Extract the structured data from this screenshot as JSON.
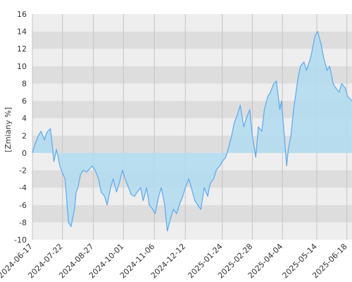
{
  "chart_data": {
    "type": "area",
    "title": "",
    "xlabel": "",
    "ylabel": "[Zmiany %]",
    "x_ticks": [
      "2024-06-17",
      "2024-07-22",
      "2024-08-27",
      "2024-10-01",
      "2024-11-06",
      "2024-12-12",
      "2025-01-24",
      "2025-02-28",
      "2025-04-04",
      "2025-05-14",
      "2025-06-18"
    ],
    "y_ticks": [
      -10,
      -8,
      -6,
      -4,
      -2,
      0,
      2,
      4,
      6,
      8,
      10,
      12,
      14,
      16
    ],
    "ylim": [
      -10,
      16
    ],
    "xlim": [
      "2024-06-17",
      "2025-06-24"
    ],
    "grid": true,
    "colors": {
      "line": "#5aa9ef",
      "fill": "#b3dcee",
      "band_light": "#eeeeee",
      "band_dark": "#dddddd",
      "vgrid": "#c4c4c4"
    },
    "series": [
      {
        "x": [
          "2024-06-17",
          "2024-06-20",
          "2024-06-24",
          "2024-06-27",
          "2024-07-01",
          "2024-07-04",
          "2024-07-08",
          "2024-07-10",
          "2024-07-12",
          "2024-07-15",
          "2024-07-17",
          "2024-07-19",
          "2024-07-22",
          "2024-07-25",
          "2024-07-29",
          "2024-08-01",
          "2024-08-05",
          "2024-08-07",
          "2024-08-09",
          "2024-08-12",
          "2024-08-15",
          "2024-08-19",
          "2024-08-22",
          "2024-08-26",
          "2024-08-29",
          "2024-09-02",
          "2024-09-05",
          "2024-09-09",
          "2024-09-12",
          "2024-09-16",
          "2024-09-19",
          "2024-09-23",
          "2024-09-26",
          "2024-09-30",
          "2024-10-03",
          "2024-10-07",
          "2024-10-10",
          "2024-10-14",
          "2024-10-17",
          "2024-10-21",
          "2024-10-24",
          "2024-10-28",
          "2024-10-31",
          "2024-11-04",
          "2024-11-07",
          "2024-11-11",
          "2024-11-14",
          "2024-11-18",
          "2024-11-21",
          "2024-11-25",
          "2024-11-28",
          "2024-12-02",
          "2024-12-05",
          "2024-12-09",
          "2024-12-12",
          "2024-12-16",
          "2024-12-19",
          "2024-12-23",
          "2024-12-30",
          "2025-01-03",
          "2025-01-07",
          "2025-01-10",
          "2025-01-14",
          "2025-01-17",
          "2025-01-21",
          "2025-01-24",
          "2025-01-28",
          "2025-01-31",
          "2025-02-04",
          "2025-02-07",
          "2025-02-11",
          "2025-02-14",
          "2025-02-18",
          "2025-02-21",
          "2025-02-25",
          "2025-02-28",
          "2025-03-04",
          "2025-03-07",
          "2025-03-11",
          "2025-03-14",
          "2025-03-18",
          "2025-03-21",
          "2025-03-25",
          "2025-03-28",
          "2025-04-01",
          "2025-04-03",
          "2025-04-07",
          "2025-04-09",
          "2025-04-11",
          "2025-04-14",
          "2025-04-17",
          "2025-04-22",
          "2025-04-25",
          "2025-04-29",
          "2025-05-02",
          "2025-05-07",
          "2025-05-12",
          "2025-05-15",
          "2025-05-19",
          "2025-05-22",
          "2025-05-26",
          "2025-05-29",
          "2025-06-02",
          "2025-06-05",
          "2025-06-09",
          "2025-06-12",
          "2025-06-16",
          "2025-06-19",
          "2025-06-24"
        ],
        "values": [
          0.0,
          1.0,
          2.0,
          2.5,
          1.5,
          2.4,
          2.8,
          1.0,
          -1.0,
          0.4,
          -0.5,
          -1.5,
          -2.3,
          -3.0,
          -8.0,
          -8.5,
          -6.5,
          -4.5,
          -4.0,
          -2.5,
          -2.0,
          -2.2,
          -1.9,
          -1.5,
          -2.0,
          -3.0,
          -4.5,
          -5.0,
          -6.0,
          -4.0,
          -3.0,
          -4.5,
          -3.5,
          -2.0,
          -3.0,
          -4.0,
          -4.8,
          -5.0,
          -4.5,
          -4.0,
          -5.5,
          -4.0,
          -6.0,
          -6.5,
          -7.0,
          -5.0,
          -4.0,
          -6.0,
          -9.0,
          -7.5,
          -6.5,
          -7.0,
          -6.0,
          -5.0,
          -4.0,
          -3.0,
          -4.0,
          -5.5,
          -6.5,
          -4.0,
          -5.0,
          -3.5,
          -3.0,
          -2.0,
          -1.5,
          -1.0,
          -0.5,
          0.5,
          2.0,
          3.5,
          4.5,
          5.5,
          3.0,
          4.0,
          5.0,
          2.0,
          -0.5,
          3.0,
          2.5,
          5.0,
          6.5,
          7.0,
          8.0,
          8.3,
          5.0,
          6.0,
          1.0,
          -1.5,
          0.5,
          2.0,
          5.0,
          8.5,
          10.0,
          10.5,
          9.5,
          11.0,
          13.5,
          14.0,
          12.5,
          11.0,
          9.5,
          10.0,
          8.0,
          7.5,
          7.0,
          8.0,
          7.5,
          6.5,
          6.0
        ]
      }
    ]
  }
}
